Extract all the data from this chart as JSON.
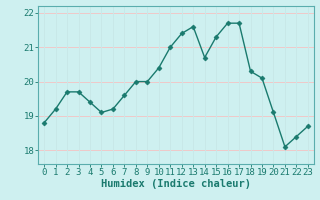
{
  "x": [
    0,
    1,
    2,
    3,
    4,
    5,
    6,
    7,
    8,
    9,
    10,
    11,
    12,
    13,
    14,
    15,
    16,
    17,
    18,
    19,
    20,
    21,
    22,
    23
  ],
  "y": [
    18.8,
    19.2,
    19.7,
    19.7,
    19.4,
    19.1,
    19.2,
    19.6,
    20.0,
    20.0,
    20.4,
    21.0,
    21.4,
    21.6,
    20.7,
    21.3,
    21.7,
    21.7,
    20.3,
    20.1,
    19.1,
    18.1,
    18.4,
    18.7
  ],
  "line_color": "#1a7a6e",
  "bg_color": "#cef0f0",
  "grid_color": "#f0c8c8",
  "grid_color_v": "#c8e8e8",
  "xlabel": "Humidex (Indice chaleur)",
  "ylim": [
    17.6,
    22.2
  ],
  "yticks": [
    18,
    19,
    20,
    21,
    22
  ],
  "xticks": [
    0,
    1,
    2,
    3,
    4,
    5,
    6,
    7,
    8,
    9,
    10,
    11,
    12,
    13,
    14,
    15,
    16,
    17,
    18,
    19,
    20,
    21,
    22,
    23
  ],
  "marker": "D",
  "markersize": 2.5,
  "linewidth": 1.0,
  "xlabel_fontsize": 7.5,
  "tick_fontsize": 6.5,
  "xlabel_color": "#1a7a6e",
  "tick_color": "#1a7a6e",
  "axis_color": "#1a7a6e",
  "spine_color": "#5aadad"
}
